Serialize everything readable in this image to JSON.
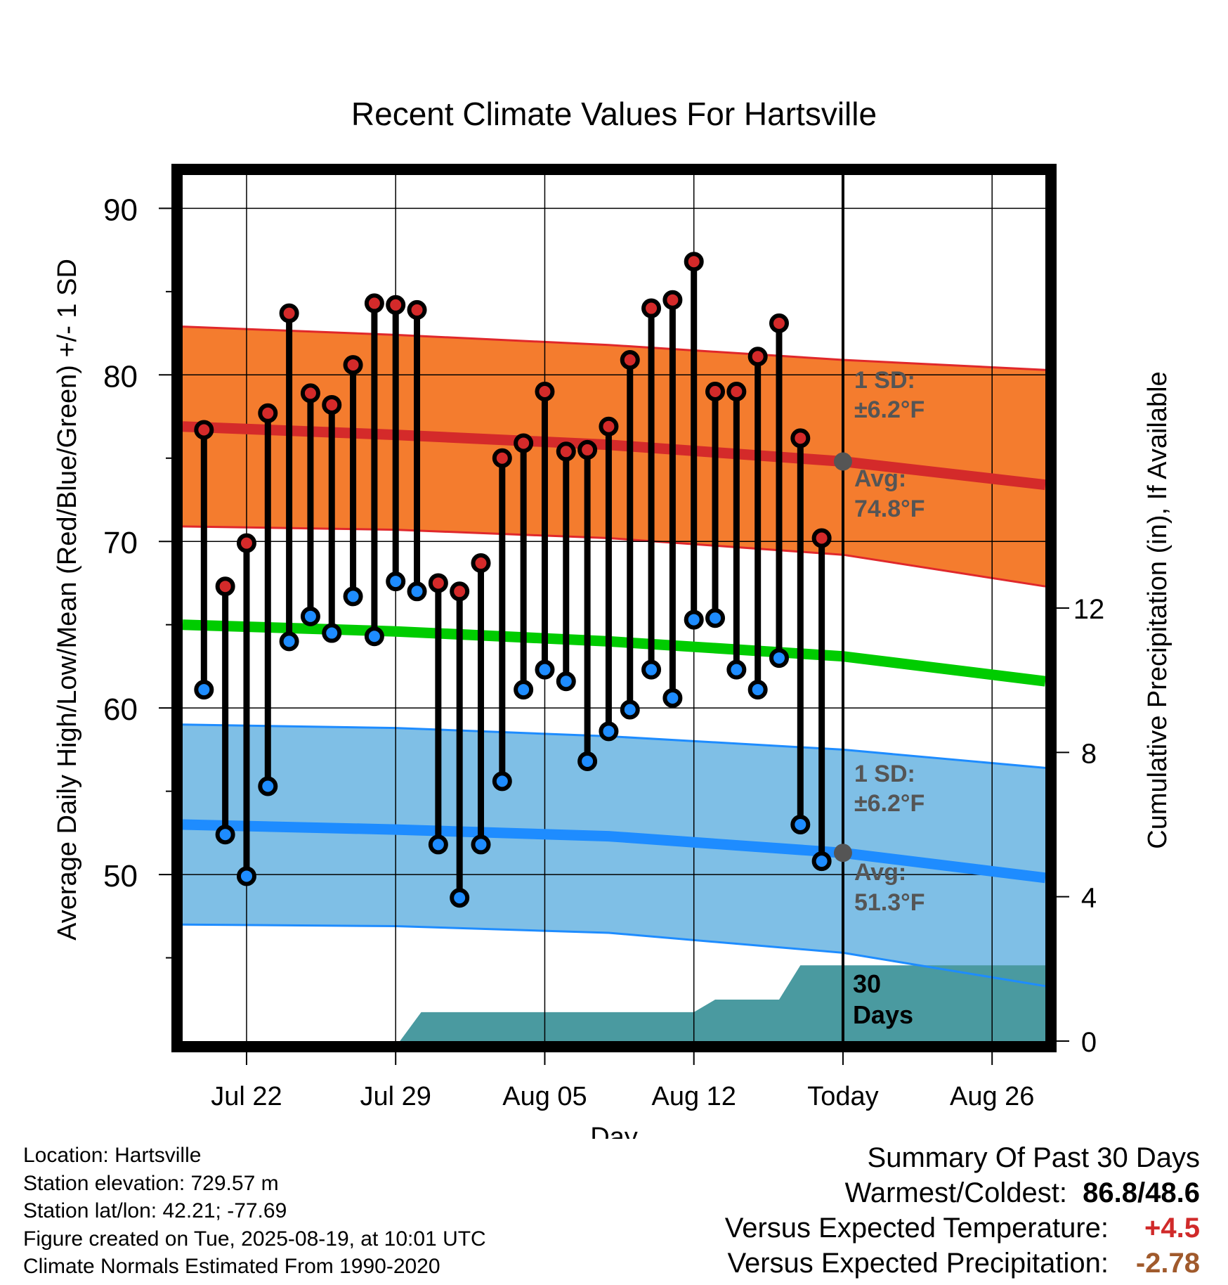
{
  "title": "Recent Climate Values For Hartsville",
  "y_axis_label": "Average Daily High/Low/Mean (Red/Blue/Green) +/- 1 SD",
  "y2_axis_label": "Cumulative Precipitation (in), If Available",
  "x_axis_label": "Day",
  "annotations": {
    "high_sd_line1": "1 SD:",
    "high_sd_line2": "±6.2°F",
    "high_avg_line1": "Avg:",
    "high_avg_line2": "74.8°F",
    "low_sd_line1": "1 SD:",
    "low_sd_line2": "±6.2°F",
    "low_avg_line1": "Avg:",
    "low_avg_line2": "51.3°F",
    "period_line1": "30",
    "period_line2": "Days"
  },
  "footer": {
    "location": "Location: Hartsville",
    "elevation": "Station elevation: 729.57 m",
    "latlon": "Station lat/lon: 42.21; -77.69",
    "created": "Figure created on Tue, 2025-08-19, at 10:01 UTC",
    "normals": "Climate Normals Estimated From 1990-2020"
  },
  "summary": {
    "heading": "Summary Of Past 30 Days",
    "warm_cold_label": "Warmest/Coldest:",
    "warm_cold_value": "86.8/48.6",
    "temp_label": "Versus Expected Temperature:",
    "temp_value": "+4.5",
    "temp_color": "#d02a2a",
    "precip_label": "Versus Expected Precipitation:",
    "precip_value": "-2.78",
    "precip_color": "#a05a2c"
  },
  "colors": {
    "high_band": "#f47c2e",
    "high_line": "#d42a2a",
    "high_edge": "#e0282b",
    "low_band": "#7fbfe6",
    "low_line": "#1e8cff",
    "low_edge": "#1e8cff",
    "mean_line": "#00cc00",
    "precip_fill": "#4a9aa0",
    "high_dot": "#d42a2a",
    "low_dot": "#1e8cff",
    "annotation_text": "#555555",
    "today_dot": "#555555"
  },
  "chart_data": {
    "type": "line",
    "x_ticks": [
      "Jul 22",
      "Jul 29",
      "Aug 05",
      "Aug 12",
      "Today",
      "Aug 26"
    ],
    "x_tick_days": [
      3,
      10,
      17,
      24,
      31,
      38
    ],
    "x_range": [
      0,
      40.5
    ],
    "ylim": [
      40,
      92
    ],
    "y_ticks": [
      50,
      60,
      70,
      80,
      90
    ],
    "y2lim": [
      0,
      24
    ],
    "y2_ticks": [
      0,
      4,
      8,
      12
    ],
    "today_day": 31,
    "daily": {
      "days": [
        1,
        2,
        3,
        4,
        5,
        6,
        7,
        8,
        9,
        10,
        11,
        12,
        13,
        14,
        15,
        16,
        17,
        18,
        19,
        20,
        21,
        22,
        23,
        24,
        25,
        26,
        27,
        28,
        29,
        30
      ],
      "high": [
        76.7,
        67.3,
        69.9,
        77.7,
        83.7,
        78.9,
        78.2,
        80.6,
        84.3,
        84.2,
        83.9,
        67.5,
        67.0,
        68.7,
        75.0,
        75.9,
        79.0,
        75.4,
        75.5,
        76.9,
        80.9,
        84.0,
        84.5,
        86.8,
        79.0,
        79.0,
        81.1,
        83.1,
        76.2,
        70.2
      ],
      "low": [
        61.1,
        52.4,
        49.9,
        55.3,
        64.0,
        65.5,
        64.5,
        66.7,
        64.3,
        67.6,
        67.0,
        51.8,
        48.6,
        51.8,
        55.6,
        61.1,
        62.3,
        61.6,
        56.8,
        58.6,
        59.9,
        62.3,
        60.6,
        65.3,
        65.4,
        62.3,
        61.1,
        63.0,
        53.0,
        50.8
      ]
    },
    "normals": {
      "days": [
        0,
        10,
        20,
        31,
        40.5
      ],
      "high_avg": [
        76.9,
        76.4,
        75.8,
        74.8,
        73.4
      ],
      "high_sd_upper": [
        82.9,
        82.4,
        81.8,
        80.9,
        80.3
      ],
      "high_sd_lower": [
        70.9,
        70.7,
        70.2,
        69.2,
        67.3
      ],
      "mean": [
        65.0,
        64.6,
        64.0,
        63.1,
        61.6
      ],
      "low_avg": [
        53.0,
        52.7,
        52.3,
        51.3,
        49.8
      ],
      "low_sd_upper": [
        59.0,
        58.8,
        58.3,
        57.5,
        56.4
      ],
      "low_sd_lower": [
        47.0,
        46.9,
        46.5,
        45.3,
        43.3
      ],
      "sd": 6.2
    },
    "precip_cumulative": {
      "days": [
        10.2,
        11.2,
        24.0,
        25.0,
        28.0,
        29.0,
        40.5
      ],
      "values": [
        0,
        0.8,
        0.8,
        1.15,
        1.15,
        2.1,
        2.1
      ]
    }
  }
}
